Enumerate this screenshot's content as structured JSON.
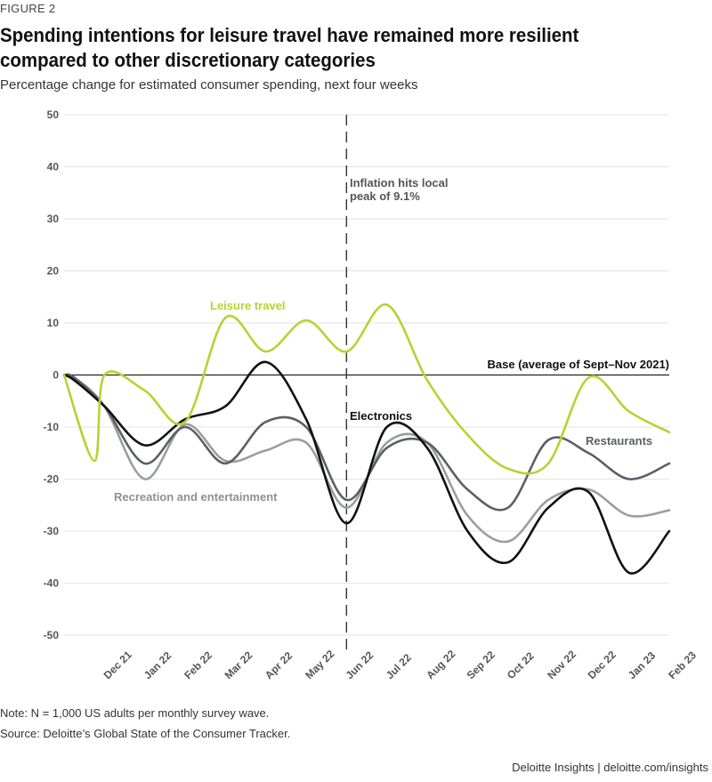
{
  "header": {
    "figure_label": "FIGURE 2",
    "title": "Spending intentions for leisure travel have remained more resilient compared to other discretionary categories",
    "subtitle": "Percentage change for estimated consumer spending, next four weeks"
  },
  "footer": {
    "note": "Note: N = 1,000 US adults per monthly survey wave.",
    "source": "Source: Deloitte’s Global State of the Consumer Tracker.",
    "brand": "Deloitte Insights | deloitte.com/insights"
  },
  "chart_data": {
    "type": "line",
    "x": [
      "Dec 21",
      "Jan 22",
      "Feb 22",
      "Mar 22",
      "Apr 22",
      "May 22",
      "Jun 22",
      "Jul 22",
      "Aug 22",
      "Sep 22",
      "Oct 22",
      "Nov 22",
      "Dec 22",
      "Jan 23",
      "Feb 23"
    ],
    "ylim": [
      -50,
      50
    ],
    "yticks": [
      50,
      40,
      30,
      20,
      10,
      0,
      -10,
      -20,
      -30,
      -40,
      -50
    ],
    "series": [
      {
        "name": "Leisure travel",
        "color": "#b5d334",
        "values": [
          0,
          -3,
          -9,
          11,
          4.5,
          10.5,
          4.5,
          13.5,
          -1,
          -11.5,
          -18,
          -17,
          -0.5,
          -7,
          -11
        ],
        "anchor": [
          -16.5,
          -16.5
        ]
      },
      {
        "name": "Electronics",
        "color": "#111111",
        "values": [
          -6,
          -13.5,
          -8.5,
          -6,
          2.5,
          -8.5,
          -28.5,
          -10,
          -14,
          -30,
          -36,
          -25.5,
          -22.5,
          -38,
          -30
        ],
        "anchor": [
          0,
          -1
        ]
      },
      {
        "name": "Restaurants",
        "color": "#5c5f66",
        "values": [
          -6,
          -17,
          -10,
          -17,
          -9,
          -10,
          -24,
          -14,
          -13,
          -22,
          -25.5,
          -12.5,
          -15,
          -20,
          -17
        ],
        "anchor": [
          0,
          -0.5
        ]
      },
      {
        "name": "Recreation and entertainment",
        "color": "#9b9ea3",
        "values": [
          -6,
          -20,
          -9.5,
          -16.5,
          -14.5,
          -13,
          -25.5,
          -13,
          -13,
          -27,
          -32,
          -24,
          -22,
          -27,
          -26
        ],
        "anchor": [
          0,
          -0.5
        ]
      }
    ],
    "baseline": {
      "value": 0,
      "label": "Base (average of Sept–Nov 2021)"
    },
    "event": {
      "x": "Jun 22",
      "label_line1": "Inflation hits local",
      "label_line2": "peak of 9.1%"
    },
    "grid": "horizontal"
  }
}
